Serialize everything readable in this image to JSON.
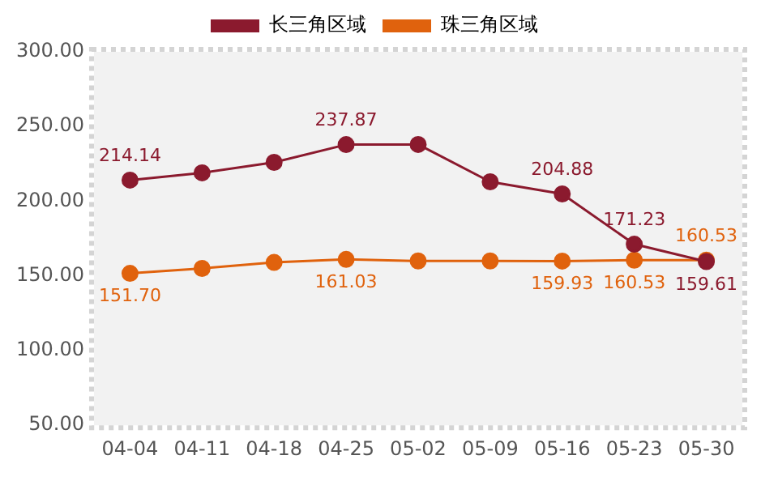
{
  "chart_data": {
    "type": "line",
    "categories": [
      "04-04",
      "04-11",
      "04-18",
      "04-25",
      "05-02",
      "05-09",
      "05-16",
      "05-23",
      "05-30"
    ],
    "series": [
      {
        "name": "长三角区域",
        "color": "#8b1a2e",
        "values": [
          214.14,
          219,
          226,
          237.87,
          238,
          213,
          204.88,
          171.23,
          159.61
        ],
        "value_labels": [
          "214.14",
          null,
          null,
          "237.87",
          null,
          null,
          "204.88",
          "171.23",
          "159.61"
        ]
      },
      {
        "name": "珠三角区域",
        "color": "#e0620d",
        "values": [
          151.7,
          155,
          159,
          161.03,
          160,
          160,
          159.93,
          160.53,
          160.53
        ],
        "value_labels": [
          "151.70",
          null,
          null,
          "161.03",
          null,
          null,
          "159.93",
          "160.53",
          "160.53"
        ]
      }
    ],
    "ylim": [
      50,
      300
    ],
    "yticks": [
      {
        "value": 50,
        "label": "50.00"
      },
      {
        "value": 100,
        "label": "100.00"
      },
      {
        "value": 150,
        "label": "150.00"
      },
      {
        "value": 200,
        "label": "200.00"
      },
      {
        "value": 250,
        "label": "250.00"
      },
      {
        "value": 300,
        "label": "300.00"
      }
    ],
    "grid": false,
    "legend": "top",
    "marker": "circle",
    "line_style": "solid"
  }
}
